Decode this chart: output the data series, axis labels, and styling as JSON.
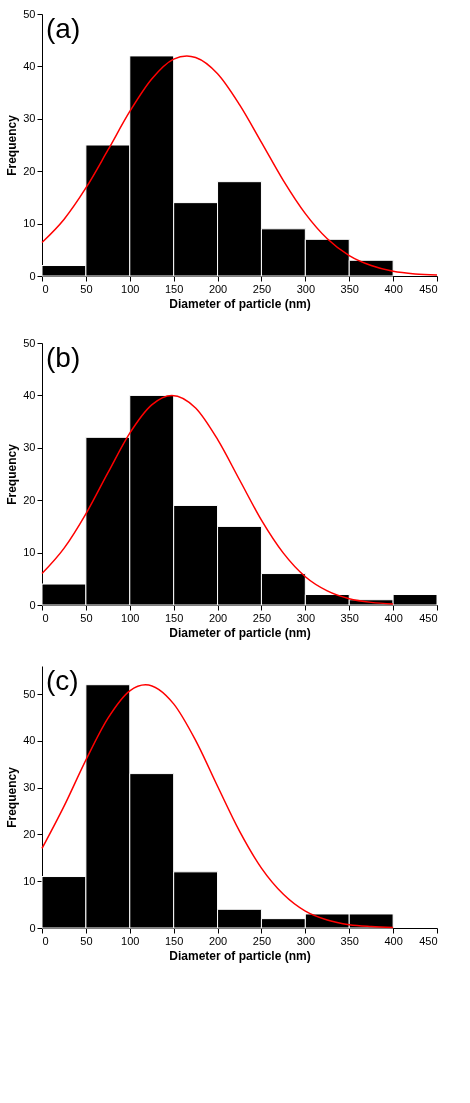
{
  "chart_data": [
    {
      "type": "histogram",
      "annotations": [
        "(a)"
      ],
      "xlabel": "Diameter of particle (nm)",
      "ylabel": "Frequency",
      "xlim": [
        0,
        450
      ],
      "xticks": [
        0,
        50,
        100,
        150,
        200,
        250,
        300,
        350,
        400,
        450
      ],
      "ylim": [
        0,
        50
      ],
      "yticks": [
        0,
        10,
        20,
        30,
        40,
        50
      ],
      "grid": false,
      "series": [
        {
          "type": "histogram",
          "color": "#000000",
          "bins": [
            0,
            50,
            100,
            150,
            200,
            250,
            300,
            350,
            400
          ],
          "values": [
            2,
            25,
            42,
            14,
            18,
            9,
            7,
            3
          ]
        },
        {
          "type": "line",
          "color": "#ff0000",
          "x": [
            0,
            25,
            50,
            75,
            100,
            125,
            150,
            165,
            175,
            200,
            225,
            250,
            275,
            300,
            325,
            350,
            375,
            400,
            425,
            450
          ],
          "values": [
            6.4,
            10.8,
            16.8,
            24.0,
            31.4,
            37.6,
            41.4,
            42,
            41.7,
            38.6,
            32.7,
            25.5,
            18.2,
            11.9,
            7.1,
            3.9,
            2.0,
            0.9,
            0.4,
            0.2
          ]
        }
      ]
    },
    {
      "type": "histogram",
      "annotations": [
        "(b)"
      ],
      "xlabel": "Diameter of particle (nm)",
      "ylabel": "Frequency",
      "xlim": [
        0,
        450
      ],
      "xticks": [
        0,
        50,
        100,
        150,
        200,
        250,
        300,
        350,
        400,
        450
      ],
      "ylim": [
        0,
        50
      ],
      "yticks": [
        0,
        10,
        20,
        30,
        40,
        50
      ],
      "grid": false,
      "series": [
        {
          "type": "histogram",
          "color": "#000000",
          "bins": [
            0,
            50,
            100,
            150,
            200,
            250,
            300,
            350,
            400,
            450
          ],
          "values": [
            4,
            32,
            40,
            19,
            15,
            6,
            2,
            1,
            2
          ]
        },
        {
          "type": "line",
          "color": "#ff0000",
          "x": [
            0,
            25,
            50,
            75,
            100,
            125,
            148,
            175,
            200,
            225,
            250,
            275,
            300,
            325,
            350,
            375,
            400
          ],
          "values": [
            6.0,
            10.8,
            17.4,
            25.2,
            32.8,
            38.2,
            40,
            37.6,
            31.6,
            23.9,
            16.2,
            9.9,
            5.4,
            2.7,
            1.2,
            0.5,
            0.2
          ]
        }
      ]
    },
    {
      "type": "histogram",
      "annotations": [
        "(c)"
      ],
      "xlabel": "Diameter of particle (nm)",
      "ylabel": "Frequency",
      "xlim": [
        0,
        450
      ],
      "xticks": [
        0,
        50,
        100,
        150,
        200,
        250,
        300,
        350,
        400,
        450
      ],
      "ylim": [
        0,
        56
      ],
      "yticks": [
        0,
        10,
        20,
        30,
        40,
        50
      ],
      "grid": false,
      "series": [
        {
          "type": "histogram",
          "color": "#000000",
          "bins": [
            0,
            50,
            100,
            150,
            200,
            250,
            300,
            350,
            400
          ],
          "values": [
            11,
            52,
            33,
            12,
            4,
            2,
            3,
            3
          ]
        },
        {
          "type": "line",
          "color": "#ff0000",
          "x": [
            0,
            25,
            50,
            75,
            100,
            118,
            150,
            175,
            200,
            225,
            250,
            275,
            300,
            325,
            350,
            375,
            400
          ],
          "values": [
            17.0,
            26.0,
            35.9,
            44.8,
            50.7,
            52,
            47.9,
            40.1,
            30.3,
            20.7,
            12.8,
            7.2,
            3.6,
            1.7,
            0.7,
            0.3,
            0.1
          ]
        }
      ]
    }
  ]
}
